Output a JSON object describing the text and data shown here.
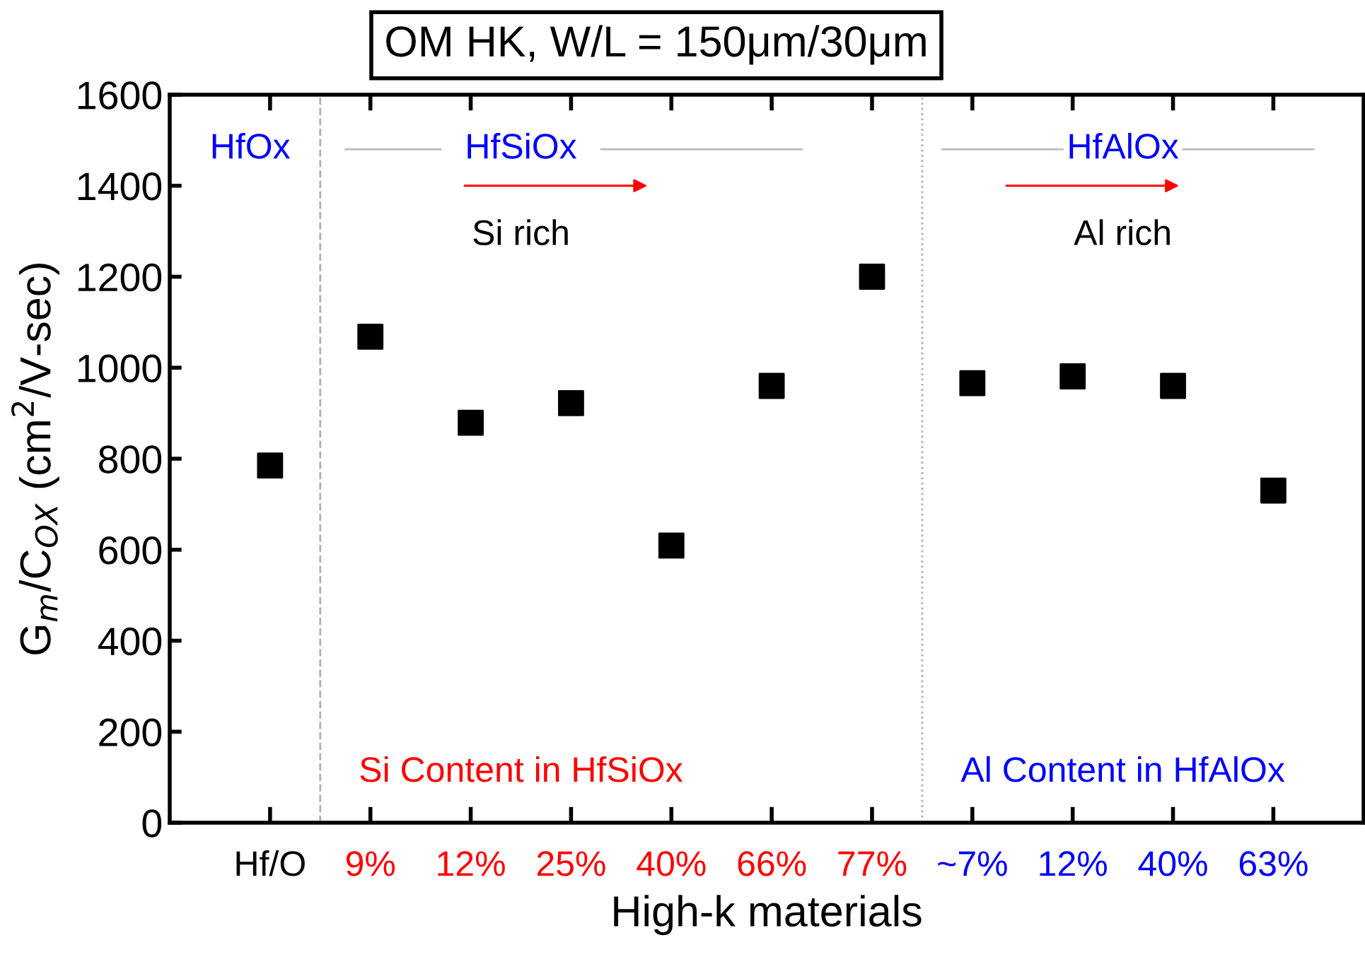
{
  "chart_data": {
    "type": "scatter",
    "title": "OM HK, W/L = 150μm/30μm",
    "xlabel": "High-k materials",
    "ylabel": "G$_{m}$/C$_{OX}$ (cm$^{2}$/V-sec)",
    "categories": [
      "Hf/O",
      "9%",
      "12%",
      "25%",
      "40%",
      "66%",
      "77%",
      "~7%",
      "12%",
      "40%",
      "63%"
    ],
    "series": [
      {
        "color": "#000000",
        "values": [
          785,
          1068,
          879,
          922,
          609,
          960,
          1200,
          966,
          981,
          960,
          730
        ]
      }
    ],
    "marker": "square",
    "ylim": [
      0,
      1600
    ],
    "yticks": [
      0,
      200,
      400,
      600,
      800,
      1000,
      1200,
      1400,
      1600
    ],
    "grid": false,
    "legend": false,
    "annotations": [
      "HfOx",
      "HfSiOx",
      "HfAlOx",
      "Si rich",
      "Al rich",
      "Si Content in HfSiOx",
      "Al Content in HfAlOx"
    ]
  }
}
